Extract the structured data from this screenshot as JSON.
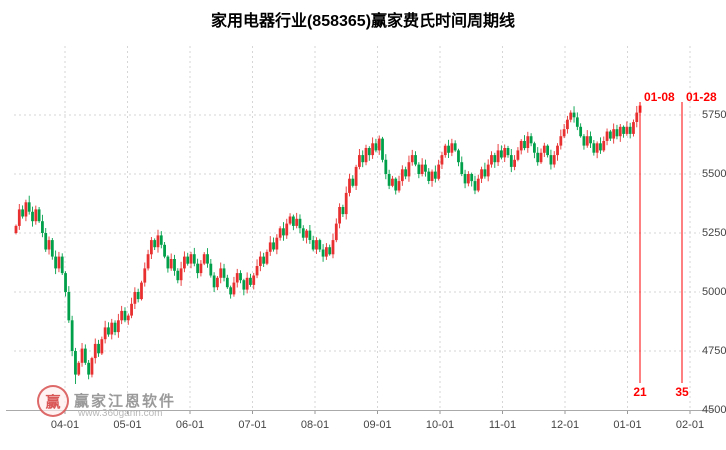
{
  "title": "家用电器行业(858365)赢家费氏时间周期线",
  "colors": {
    "up": "#e83030",
    "down": "#00a04a",
    "annotation": "#ff0000",
    "grid": "#d6d6d6",
    "axis_line": "#aaaaaa",
    "axis_text": "#444444"
  },
  "y_axis": {
    "labels": [
      5750,
      5500,
      5250,
      5000,
      4750,
      4500
    ],
    "min": 4500,
    "step": 250
  },
  "x_axis": {
    "labels": [
      "04-01",
      "05-01",
      "06-01",
      "07-01",
      "08-01",
      "09-01",
      "10-01",
      "11-01",
      "12-01",
      "01-01",
      "02-01"
    ]
  },
  "annotations": {
    "cycle_lines": [
      {
        "date_label": "01-08",
        "count_label": "21"
      },
      {
        "date_label": "01-28",
        "count_label": "35"
      }
    ]
  },
  "watermark": {
    "brand": "赢家江恩软件",
    "url": "www.360gann.com",
    "logo_char": "赢"
  },
  "chart_data": {
    "type": "candlestick",
    "title": "家用电器行业(858365)赢家费氏时间周期线",
    "xlabel": "",
    "ylabel": "",
    "ylim": [
      4500,
      6050
    ],
    "grid": true,
    "x_tick_labels": [
      "04-01",
      "05-01",
      "06-01",
      "07-01",
      "08-01",
      "09-01",
      "10-01",
      "11-01",
      "12-01",
      "01-01",
      "02-01"
    ],
    "fib_time_cycles": [
      {
        "date": "01-08",
        "bars": 21
      },
      {
        "date": "01-28",
        "bars": 35
      }
    ],
    "first_open": 5250,
    "low_index": 18,
    "period_low": 4610,
    "period_high": 5805,
    "closes": [
      5280,
      5350,
      5320,
      5380,
      5340,
      5300,
      5350,
      5300,
      5250,
      5180,
      5220,
      5150,
      5100,
      5150,
      5080,
      5000,
      4880,
      4750,
      4650,
      4700,
      4760,
      4700,
      4650,
      4720,
      4780,
      4740,
      4800,
      4850,
      4820,
      4870,
      4830,
      4880,
      4920,
      4880,
      4900,
      4950,
      5000,
      4970,
      5040,
      5100,
      5160,
      5220,
      5190,
      5240,
      5200,
      5150,
      5100,
      5140,
      5090,
      5050,
      5100,
      5150,
      5120,
      5160,
      5120,
      5080,
      5120,
      5160,
      5120,
      5070,
      5020,
      5060,
      5100,
      5060,
      5020,
      4990,
      5040,
      5080,
      5050,
      5010,
      5060,
      5030,
      5070,
      5110,
      5150,
      5120,
      5170,
      5210,
      5180,
      5230,
      5270,
      5240,
      5290,
      5320,
      5280,
      5310,
      5270,
      5230,
      5260,
      5220,
      5180,
      5220,
      5180,
      5150,
      5190,
      5160,
      5220,
      5290,
      5360,
      5330,
      5420,
      5480,
      5450,
      5530,
      5580,
      5550,
      5610,
      5580,
      5630,
      5600,
      5650,
      5560,
      5500,
      5450,
      5480,
      5430,
      5470,
      5520,
      5490,
      5550,
      5580,
      5540,
      5500,
      5540,
      5510,
      5470,
      5510,
      5480,
      5540,
      5580,
      5620,
      5590,
      5630,
      5600,
      5550,
      5500,
      5460,
      5500,
      5470,
      5430,
      5480,
      5520,
      5490,
      5540,
      5580,
      5550,
      5600,
      5570,
      5610,
      5580,
      5530,
      5560,
      5600,
      5640,
      5610,
      5660,
      5630,
      5590,
      5550,
      5590,
      5620,
      5580,
      5540,
      5580,
      5620,
      5660,
      5690,
      5730,
      5760,
      5740,
      5700,
      5660,
      5620,
      5660,
      5630,
      5590,
      5630,
      5600,
      5640,
      5680,
      5650,
      5690,
      5660,
      5700,
      5670,
      5700,
      5670,
      5720,
      5760,
      5790
    ]
  }
}
